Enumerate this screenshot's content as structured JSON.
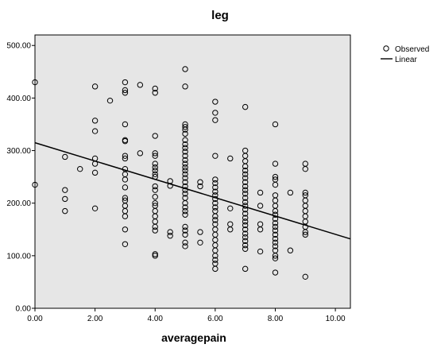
{
  "chart_data": {
    "type": "scatter",
    "title": "leg",
    "xlabel": "averagepain",
    "ylabel": "",
    "xlim": [
      0,
      10.5
    ],
    "ylim": [
      0,
      520
    ],
    "x_ticks": [
      "0.00",
      "2.00",
      "4.00",
      "6.00",
      "8.00",
      "10.00"
    ],
    "y_ticks": [
      "0.00",
      "100.00",
      "200.00",
      "300.00",
      "400.00",
      "500.00"
    ],
    "grid": false,
    "legend": {
      "placement": "top-right",
      "entries": [
        "Observed",
        "Linear"
      ]
    },
    "colors": {
      "plot_background": "#e6e6e6",
      "marker": "#000000",
      "line": "#000000"
    },
    "series": [
      {
        "name": "Observed",
        "kind": "points",
        "points": [
          [
            0,
            430
          ],
          [
            0,
            235
          ],
          [
            1,
            288
          ],
          [
            1,
            225
          ],
          [
            1,
            208
          ],
          [
            1,
            185
          ],
          [
            1.5,
            265
          ],
          [
            2,
            422
          ],
          [
            2,
            357
          ],
          [
            2,
            337
          ],
          [
            2,
            285
          ],
          [
            2,
            275
          ],
          [
            2,
            258
          ],
          [
            2,
            190
          ],
          [
            2.5,
            395
          ],
          [
            3,
            430
          ],
          [
            3,
            415
          ],
          [
            3,
            410
          ],
          [
            3,
            350
          ],
          [
            3,
            320
          ],
          [
            3,
            318
          ],
          [
            3,
            290
          ],
          [
            3,
            285
          ],
          [
            3,
            265
          ],
          [
            3,
            255
          ],
          [
            3,
            245
          ],
          [
            3,
            230
          ],
          [
            3,
            210
          ],
          [
            3,
            205
          ],
          [
            3,
            195
          ],
          [
            3,
            185
          ],
          [
            3,
            175
          ],
          [
            3,
            150
          ],
          [
            3,
            122
          ],
          [
            3.5,
            425
          ],
          [
            3.5,
            295
          ],
          [
            4,
            418
          ],
          [
            4,
            410
          ],
          [
            4,
            328
          ],
          [
            4,
            295
          ],
          [
            4,
            290
          ],
          [
            4,
            275
          ],
          [
            4,
            268
          ],
          [
            4,
            262
          ],
          [
            4,
            255
          ],
          [
            4,
            250
          ],
          [
            4,
            232
          ],
          [
            4,
            225
          ],
          [
            4,
            212
          ],
          [
            4,
            200
          ],
          [
            4,
            195
          ],
          [
            4,
            185
          ],
          [
            4,
            175
          ],
          [
            4,
            165
          ],
          [
            4,
            155
          ],
          [
            4,
            148
          ],
          [
            4,
            103
          ],
          [
            4,
            100
          ],
          [
            4.5,
            242
          ],
          [
            4.5,
            233
          ],
          [
            4.5,
            145
          ],
          [
            4.5,
            138
          ],
          [
            5,
            455
          ],
          [
            5,
            422
          ],
          [
            5,
            350
          ],
          [
            5,
            345
          ],
          [
            5,
            340
          ],
          [
            5,
            332
          ],
          [
            5,
            320
          ],
          [
            5,
            312
          ],
          [
            5,
            305
          ],
          [
            5,
            298
          ],
          [
            5,
            290
          ],
          [
            5,
            282
          ],
          [
            5,
            275
          ],
          [
            5,
            268
          ],
          [
            5,
            262
          ],
          [
            5,
            255
          ],
          [
            5,
            248
          ],
          [
            5,
            240
          ],
          [
            5,
            232
          ],
          [
            5,
            225
          ],
          [
            5,
            218
          ],
          [
            5,
            210
          ],
          [
            5,
            200
          ],
          [
            5,
            192
          ],
          [
            5,
            185
          ],
          [
            5,
            178
          ],
          [
            5,
            155
          ],
          [
            5,
            148
          ],
          [
            5,
            140
          ],
          [
            5,
            125
          ],
          [
            5,
            118
          ],
          [
            5.5,
            240
          ],
          [
            5.5,
            232
          ],
          [
            5.5,
            145
          ],
          [
            5.5,
            125
          ],
          [
            6,
            393
          ],
          [
            6,
            372
          ],
          [
            6,
            358
          ],
          [
            6,
            290
          ],
          [
            6,
            245
          ],
          [
            6,
            238
          ],
          [
            6,
            230
          ],
          [
            6,
            222
          ],
          [
            6,
            215
          ],
          [
            6,
            208
          ],
          [
            6,
            200
          ],
          [
            6,
            192
          ],
          [
            6,
            185
          ],
          [
            6,
            175
          ],
          [
            6,
            168
          ],
          [
            6,
            160
          ],
          [
            6,
            150
          ],
          [
            6,
            140
          ],
          [
            6,
            130
          ],
          [
            6,
            120
          ],
          [
            6,
            110
          ],
          [
            6,
            100
          ],
          [
            6,
            92
          ],
          [
            6,
            85
          ],
          [
            6,
            75
          ],
          [
            6.5,
            285
          ],
          [
            6.5,
            190
          ],
          [
            6.5,
            160
          ],
          [
            6.5,
            150
          ],
          [
            7,
            383
          ],
          [
            7,
            300
          ],
          [
            7,
            290
          ],
          [
            7,
            280
          ],
          [
            7,
            270
          ],
          [
            7,
            262
          ],
          [
            7,
            255
          ],
          [
            7,
            248
          ],
          [
            7,
            240
          ],
          [
            7,
            232
          ],
          [
            7,
            225
          ],
          [
            7,
            218
          ],
          [
            7,
            210
          ],
          [
            7,
            202
          ],
          [
            7,
            195
          ],
          [
            7,
            188
          ],
          [
            7,
            180
          ],
          [
            7,
            172
          ],
          [
            7,
            165
          ],
          [
            7,
            158
          ],
          [
            7,
            150
          ],
          [
            7,
            142
          ],
          [
            7,
            135
          ],
          [
            7,
            128
          ],
          [
            7,
            120
          ],
          [
            7,
            113
          ],
          [
            7,
            75
          ],
          [
            7.5,
            220
          ],
          [
            7.5,
            195
          ],
          [
            7.5,
            160
          ],
          [
            7.5,
            150
          ],
          [
            7.5,
            108
          ],
          [
            8,
            350
          ],
          [
            8,
            275
          ],
          [
            8,
            250
          ],
          [
            8,
            245
          ],
          [
            8,
            235
          ],
          [
            8,
            215
          ],
          [
            8,
            205
          ],
          [
            8,
            195
          ],
          [
            8,
            185
          ],
          [
            8,
            178
          ],
          [
            8,
            170
          ],
          [
            8,
            162
          ],
          [
            8,
            155
          ],
          [
            8,
            148
          ],
          [
            8,
            140
          ],
          [
            8,
            132
          ],
          [
            8,
            125
          ],
          [
            8,
            118
          ],
          [
            8,
            110
          ],
          [
            8,
            100
          ],
          [
            8,
            95
          ],
          [
            8,
            68
          ],
          [
            8.5,
            220
          ],
          [
            8.5,
            110
          ],
          [
            9,
            275
          ],
          [
            9,
            265
          ],
          [
            9,
            220
          ],
          [
            9,
            215
          ],
          [
            9,
            205
          ],
          [
            9,
            195
          ],
          [
            9,
            185
          ],
          [
            9,
            175
          ],
          [
            9,
            165
          ],
          [
            9,
            155
          ],
          [
            9,
            145
          ],
          [
            9,
            140
          ],
          [
            9,
            60
          ]
        ]
      },
      {
        "name": "Linear",
        "kind": "line",
        "points": [
          [
            0,
            315
          ],
          [
            10.5,
            132
          ]
        ]
      }
    ]
  }
}
